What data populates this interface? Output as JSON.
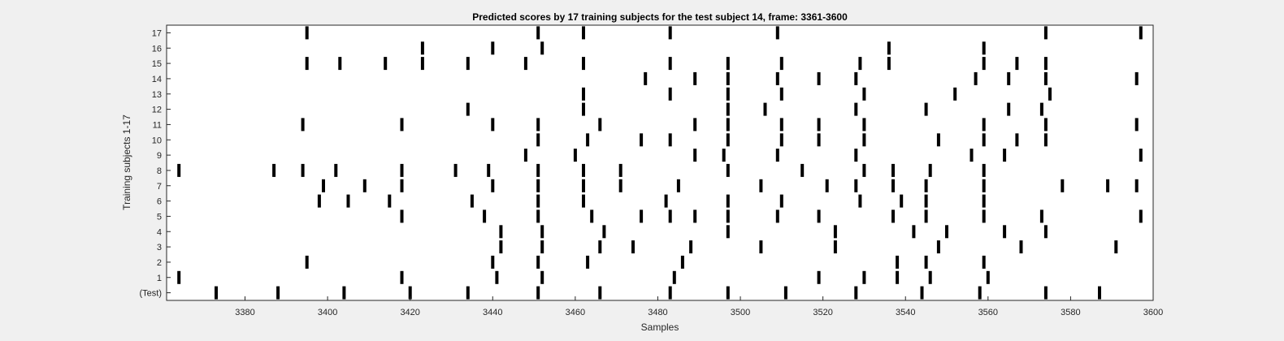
{
  "chart_data": {
    "type": "raster",
    "title": "Predicted scores by 17 training subjects for the test subject 14, frame: 3361-3600",
    "xlabel": "Samples",
    "ylabel": "Training subjects 1-17",
    "xlim": [
      3361,
      3600
    ],
    "x_ticks": [
      3380,
      3400,
      3420,
      3440,
      3460,
      3480,
      3500,
      3520,
      3540,
      3560,
      3580,
      3600
    ],
    "y_tick_labels": [
      "(Test)",
      "1",
      "2",
      "3",
      "4",
      "5",
      "6",
      "7",
      "8",
      "9",
      "10",
      "11",
      "12",
      "13",
      "14",
      "15",
      "16",
      "17"
    ],
    "grid": false,
    "legend": "none",
    "colors": {
      "background": "#f0f0f0",
      "plot_area": "#ffffff",
      "mark": "#000000",
      "axis": "#262626"
    },
    "series": [
      {
        "row": "(Test)",
        "x": [
          3373,
          3388,
          3404,
          3420,
          3434,
          3451,
          3466,
          3483,
          3497,
          3511,
          3528,
          3544,
          3558,
          3574,
          3587
        ]
      },
      {
        "row": "1",
        "x": [
          3364,
          3418,
          3441,
          3452,
          3484,
          3519,
          3530,
          3538,
          3546,
          3560
        ]
      },
      {
        "row": "2",
        "x": [
          3395,
          3440,
          3451,
          3463,
          3486,
          3538,
          3545,
          3559
        ]
      },
      {
        "row": "3",
        "x": [
          3442,
          3452,
          3466,
          3474,
          3488,
          3505,
          3523,
          3548,
          3568,
          3591
        ]
      },
      {
        "row": "4",
        "x": [
          3442,
          3452,
          3467,
          3497,
          3523,
          3542,
          3550,
          3564,
          3574
        ]
      },
      {
        "row": "5",
        "x": [
          3418,
          3438,
          3451,
          3464,
          3476,
          3483,
          3489,
          3497,
          3509,
          3519,
          3537,
          3545,
          3559,
          3573,
          3597
        ]
      },
      {
        "row": "6",
        "x": [
          3398,
          3405,
          3415,
          3435,
          3451,
          3462,
          3482,
          3497,
          3510,
          3529,
          3539,
          3545,
          3559
        ]
      },
      {
        "row": "7",
        "x": [
          3399,
          3409,
          3418,
          3440,
          3451,
          3462,
          3471,
          3485,
          3505,
          3521,
          3528,
          3537,
          3545,
          3559,
          3578,
          3589,
          3596
        ]
      },
      {
        "row": "8",
        "x": [
          3364,
          3387,
          3394,
          3402,
          3418,
          3431,
          3439,
          3451,
          3462,
          3471,
          3497,
          3515,
          3530,
          3537,
          3546,
          3559
        ]
      },
      {
        "row": "9",
        "x": [
          3448,
          3460,
          3489,
          3496,
          3509,
          3528,
          3556,
          3564,
          3597
        ]
      },
      {
        "row": "10",
        "x": [
          3451,
          3463,
          3476,
          3483,
          3497,
          3510,
          3519,
          3530,
          3548,
          3559,
          3567,
          3574
        ]
      },
      {
        "row": "11",
        "x": [
          3394,
          3418,
          3440,
          3451,
          3466,
          3489,
          3497,
          3510,
          3519,
          3530,
          3559,
          3574,
          3596
        ]
      },
      {
        "row": "12",
        "x": [
          3434,
          3462,
          3497,
          3506,
          3528,
          3545,
          3565,
          3573
        ]
      },
      {
        "row": "13",
        "x": [
          3462,
          3483,
          3497,
          3510,
          3530,
          3552,
          3575
        ]
      },
      {
        "row": "14",
        "x": [
          3477,
          3489,
          3497,
          3509,
          3519,
          3528,
          3557,
          3565,
          3574,
          3596
        ]
      },
      {
        "row": "15",
        "x": [
          3395,
          3403,
          3414,
          3423,
          3434,
          3448,
          3462,
          3483,
          3497,
          3510,
          3529,
          3536,
          3559,
          3567,
          3574
        ]
      },
      {
        "row": "16",
        "x": [
          3423,
          3440,
          3452,
          3536,
          3559
        ]
      },
      {
        "row": "17",
        "x": [
          3395,
          3451,
          3462,
          3483,
          3509,
          3574,
          3597
        ]
      }
    ]
  }
}
